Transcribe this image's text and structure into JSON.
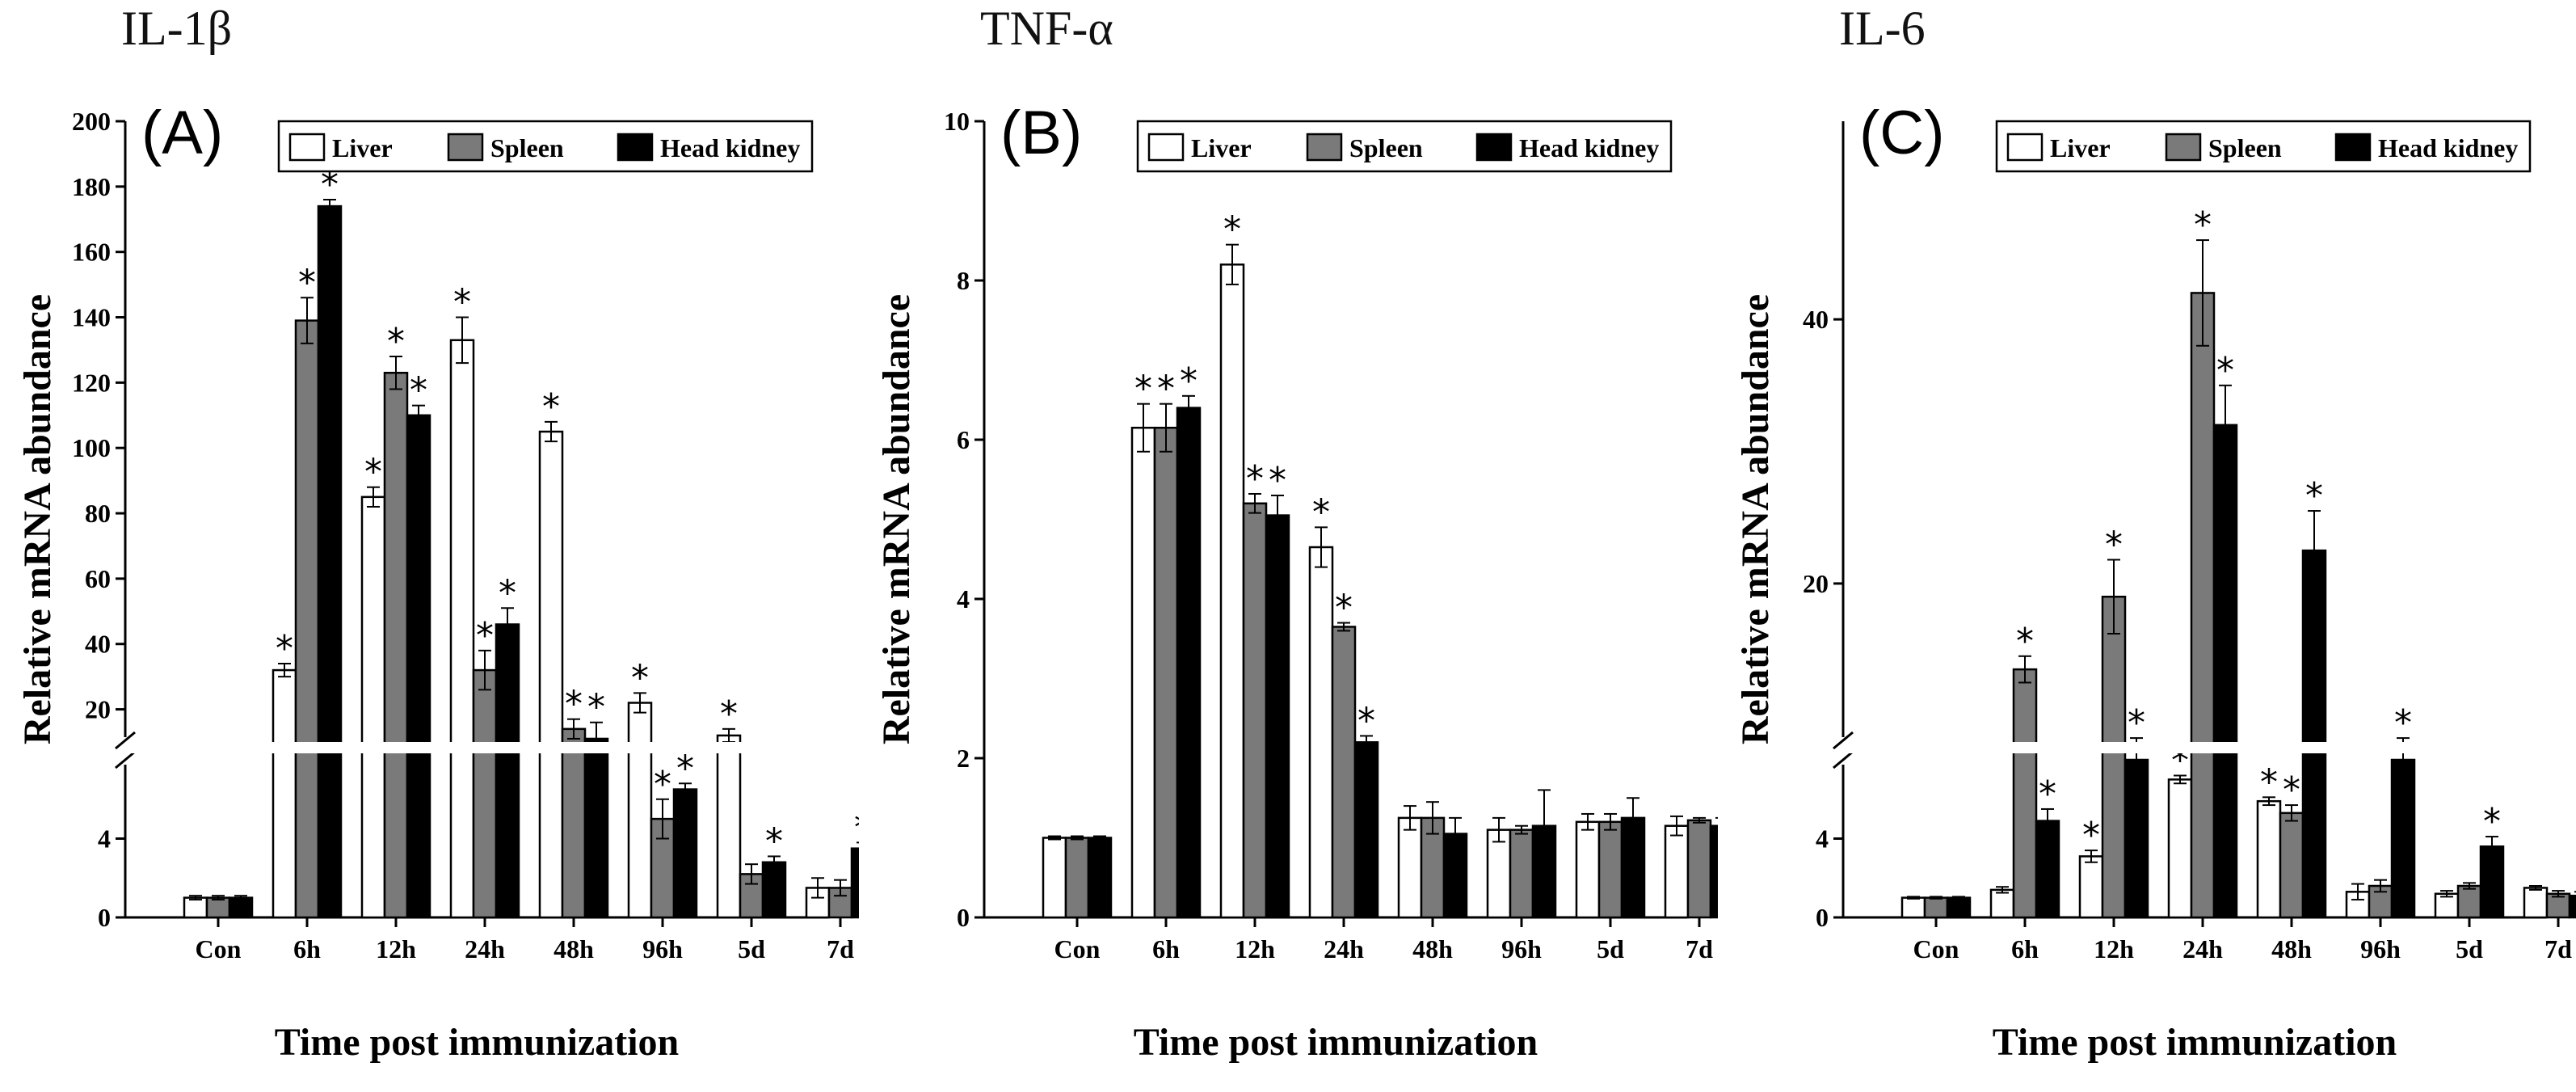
{
  "figure": {
    "xlabel": "Time post immunization",
    "ylabel": "Relative mRNA abundance",
    "categories": [
      "Con",
      "6h",
      "12h",
      "24h",
      "48h",
      "96h",
      "5d",
      "7d"
    ],
    "legend": [
      "Liver",
      "Spleen",
      "Head kidney"
    ],
    "colors": {
      "Liver": "#ffffff",
      "Spleen": "#7a7a7a",
      "Head kidney": "#000000",
      "stroke": "#000000"
    }
  },
  "chart_data": [
    {
      "type": "bar",
      "title": "IL-1β",
      "panel_label": "(A)",
      "xlabel": "Time post immunization",
      "ylabel": "Relative mRNA abundance",
      "categories": [
        "Con",
        "6h",
        "12h",
        "24h",
        "48h",
        "96h",
        "5d",
        "7d"
      ],
      "y_axis_break": true,
      "y_lower_range": [
        0,
        8
      ],
      "y_lower_ticks": [
        "0",
        "4"
      ],
      "y_upper_range": [
        10,
        200
      ],
      "y_upper_ticks": [
        "20",
        "40",
        "60",
        "80",
        "100",
        "120",
        "140",
        "160",
        "180",
        "200"
      ],
      "legend_position": "top-right",
      "series": [
        {
          "name": "Liver",
          "values": [
            1,
            32,
            85,
            133,
            105,
            22,
            12,
            1.5
          ],
          "errors": [
            0.1,
            2,
            3,
            7,
            3,
            3,
            2,
            0.5
          ],
          "significant": [
            false,
            true,
            true,
            true,
            true,
            true,
            true,
            false
          ]
        },
        {
          "name": "Spleen",
          "values": [
            1,
            139,
            123,
            32,
            14,
            5,
            2.2,
            1.5
          ],
          "errors": [
            0.1,
            7,
            5,
            6,
            3,
            1,
            0.5,
            0.4
          ],
          "significant": [
            false,
            true,
            true,
            true,
            true,
            true,
            false,
            false
          ]
        },
        {
          "name": "Head kidney",
          "values": [
            1,
            174,
            110,
            46,
            11,
            6.5,
            2.8,
            3.5
          ],
          "errors": [
            0.1,
            2,
            3,
            5,
            5,
            0.3,
            0.3,
            0.3
          ],
          "significant": [
            false,
            true,
            true,
            true,
            true,
            true,
            true,
            true
          ]
        }
      ]
    },
    {
      "type": "bar",
      "title": "TNF-α",
      "panel_label": "(B)",
      "xlabel": "Time post immunization",
      "ylabel": "Relative mRNA abundance",
      "categories": [
        "Con",
        "6h",
        "12h",
        "24h",
        "48h",
        "96h",
        "5d",
        "7d"
      ],
      "y_axis_break": false,
      "ylim": [
        0,
        10
      ],
      "y_ticks": [
        "0",
        "2",
        "4",
        "6",
        "8",
        "10"
      ],
      "legend_position": "top-right",
      "series": [
        {
          "name": "Liver",
          "values": [
            1,
            6.15,
            8.2,
            4.65,
            1.25,
            1.1,
            1.2,
            1.15
          ],
          "errors": [
            0.02,
            0.3,
            0.25,
            0.25,
            0.15,
            0.15,
            0.1,
            0.12
          ],
          "significant": [
            false,
            true,
            true,
            true,
            false,
            false,
            false,
            false
          ]
        },
        {
          "name": "Spleen",
          "values": [
            1,
            6.15,
            5.2,
            3.65,
            1.25,
            1.1,
            1.2,
            1.22
          ],
          "errors": [
            0.02,
            0.3,
            0.12,
            0.05,
            0.2,
            0.05,
            0.1,
            0.03
          ],
          "significant": [
            false,
            true,
            true,
            true,
            false,
            false,
            false,
            false
          ]
        },
        {
          "name": "Head kidney",
          "values": [
            1,
            6.4,
            5.05,
            2.2,
            1.05,
            1.15,
            1.25,
            1.15
          ],
          "errors": [
            0.02,
            0.15,
            0.25,
            0.08,
            0.2,
            0.45,
            0.25,
            0.1
          ],
          "significant": [
            false,
            true,
            true,
            true,
            false,
            false,
            false,
            false
          ]
        }
      ]
    },
    {
      "type": "bar",
      "title": "IL-6",
      "panel_label": "(C)",
      "xlabel": "Time post immunization",
      "ylabel": "Relative mRNA abundance",
      "categories": [
        "Con",
        "6h",
        "12h",
        "24h",
        "48h",
        "96h",
        "5d",
        "7d"
      ],
      "y_axis_break": true,
      "y_lower_range": [
        0,
        8
      ],
      "y_lower_ticks": [
        "0",
        "4"
      ],
      "y_upper_range": [
        8,
        55
      ],
      "y_upper_ticks": [
        "20",
        "40"
      ],
      "legend_position": "top-right",
      "series": [
        {
          "name": "Liver",
          "values": [
            1,
            1.4,
            3.1,
            7,
            5.9,
            1.3,
            1.2,
            1.5
          ],
          "errors": [
            0.05,
            0.15,
            0.3,
            0.2,
            0.2,
            0.4,
            0.15,
            0.1
          ],
          "significant": [
            false,
            false,
            true,
            true,
            true,
            false,
            false,
            false
          ]
        },
        {
          "name": "Spleen",
          "values": [
            1,
            13.5,
            19,
            42,
            5.3,
            1.6,
            1.6,
            1.2
          ],
          "errors": [
            0.05,
            1,
            2.8,
            4,
            0.4,
            0.3,
            0.15,
            0.15
          ],
          "significant": [
            false,
            true,
            true,
            true,
            true,
            false,
            false,
            false
          ]
        },
        {
          "name": "Head kidney",
          "values": [
            1,
            4.9,
            8,
            32,
            22.5,
            8,
            3.6,
            1.1
          ],
          "errors": [
            0.05,
            0.6,
            0.3,
            3,
            3,
            0.3,
            0.5,
            0.2
          ],
          "significant": [
            false,
            true,
            true,
            true,
            true,
            true,
            true,
            false
          ]
        }
      ]
    }
  ]
}
